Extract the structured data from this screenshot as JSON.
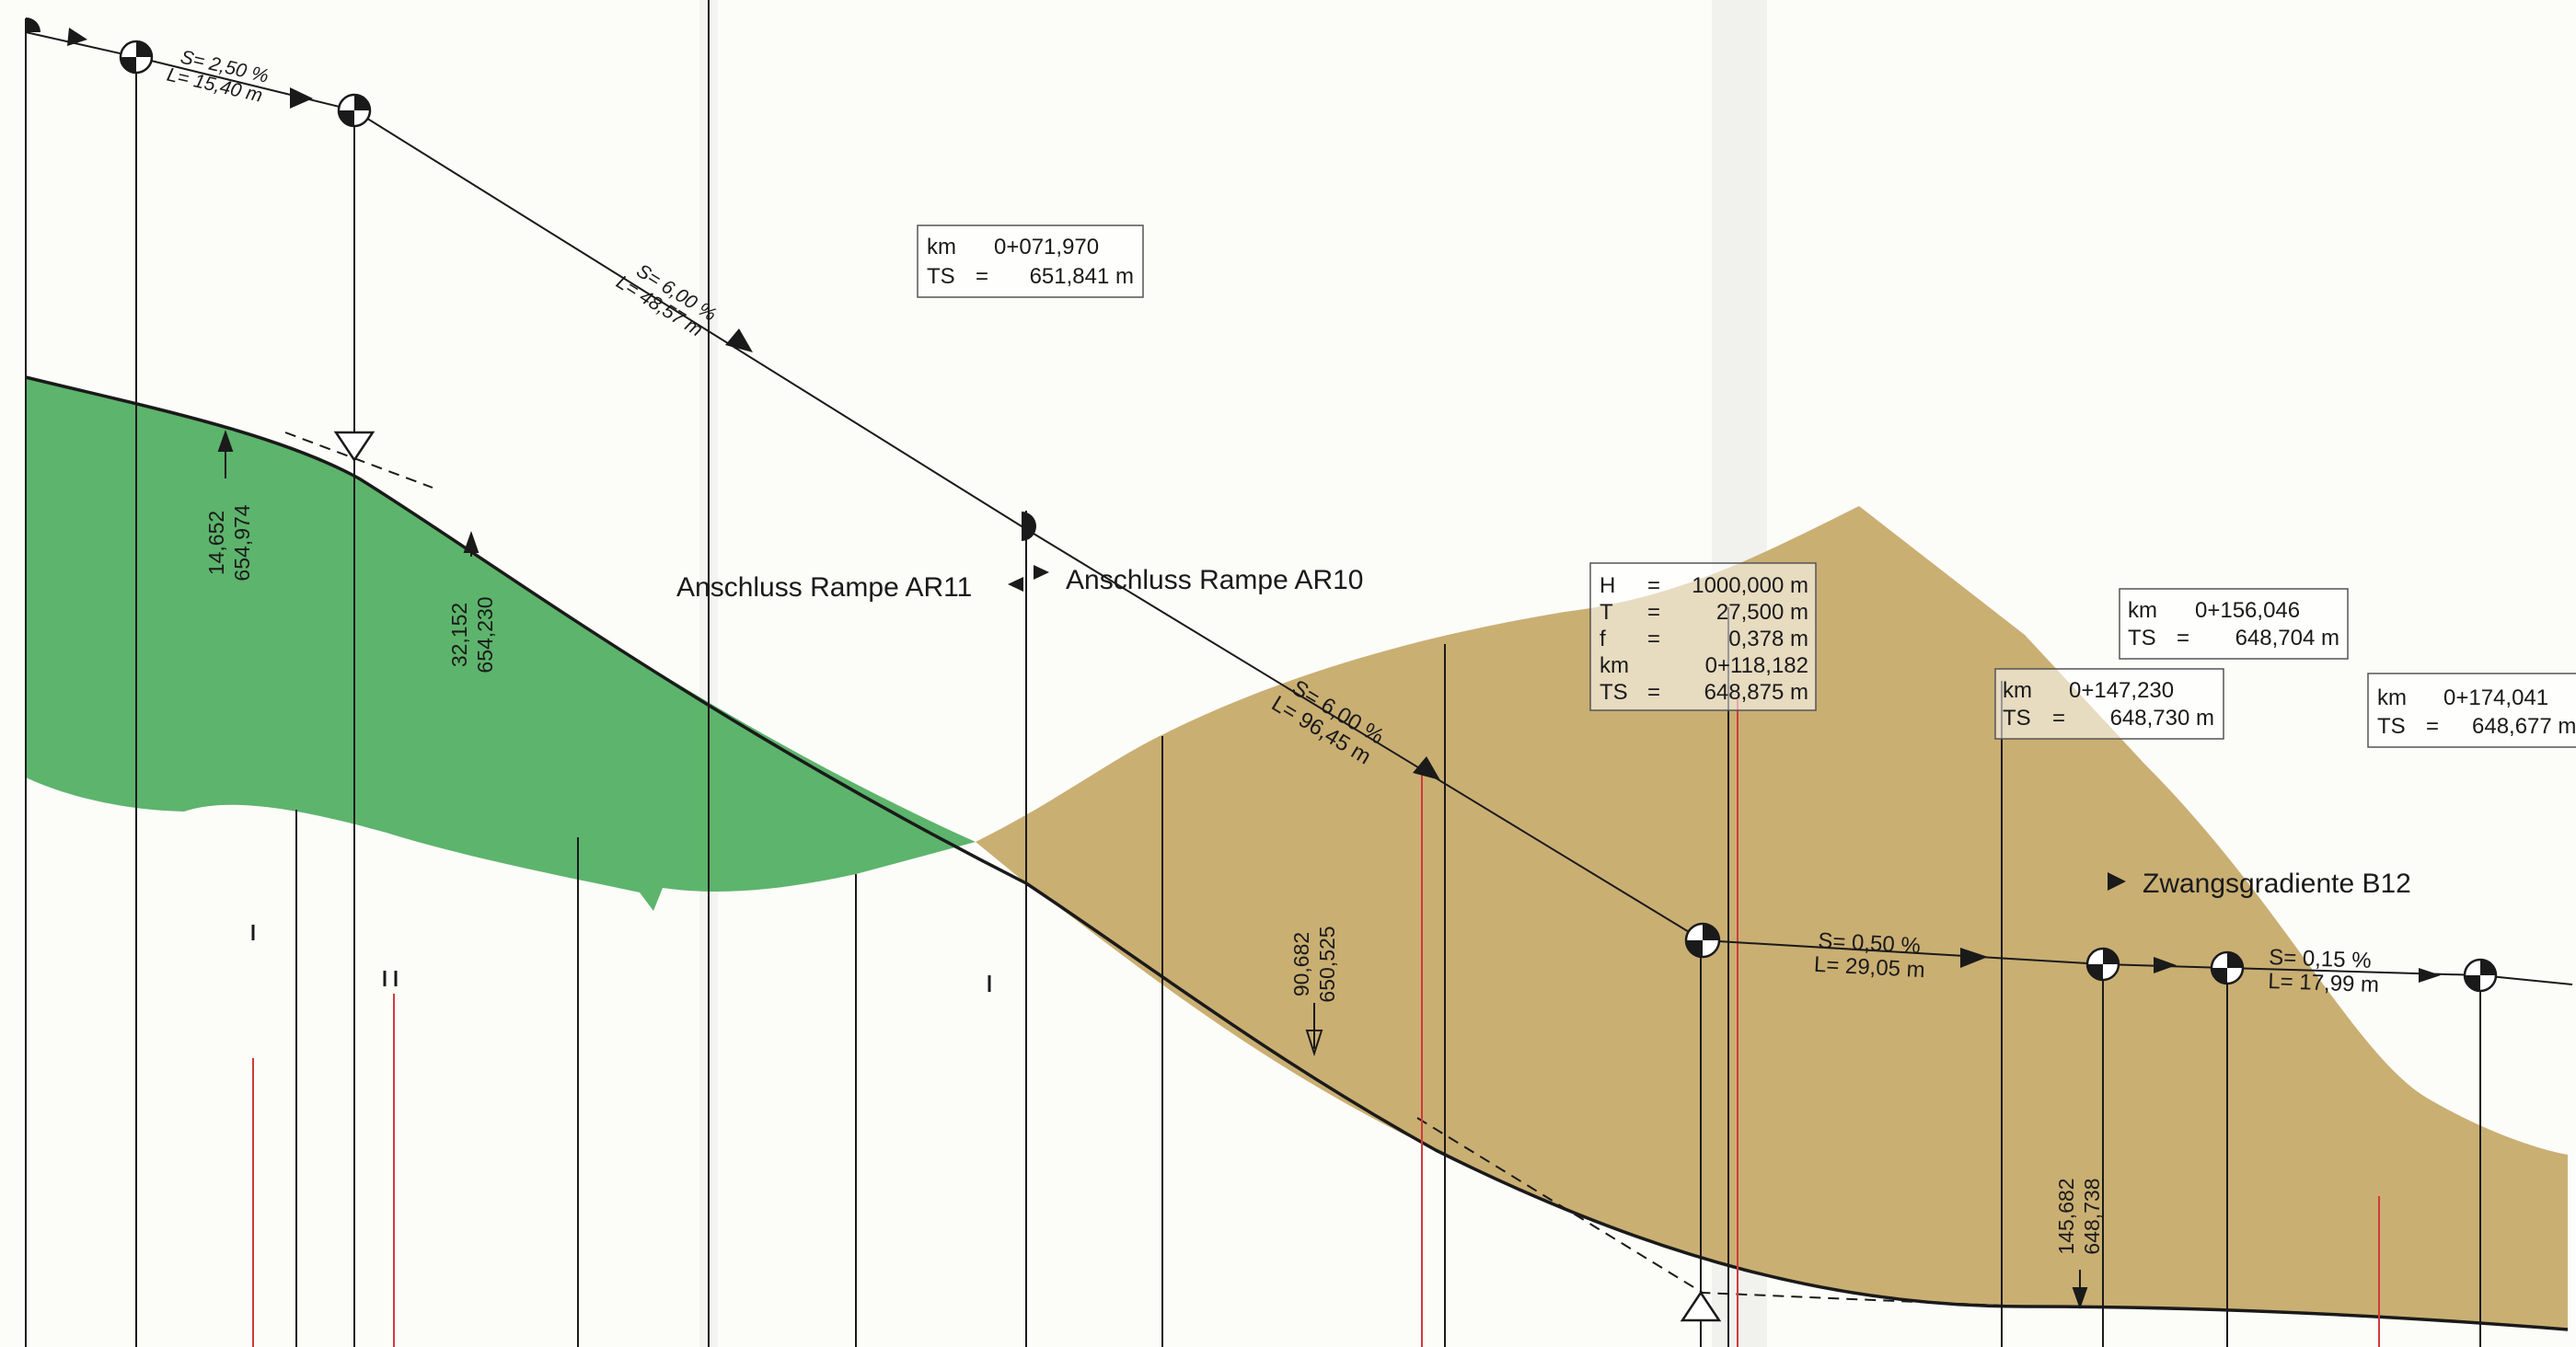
{
  "colors": {
    "cut_fill": "#4fae5f",
    "fill_fill": "#c7ab6c",
    "line": "#1a1a1a",
    "red_line": "#d23a3a"
  },
  "slopes": [
    {
      "s": "S= 2,50 %",
      "l": "L= 15,40 m"
    },
    {
      "s": "S= 6,00 %",
      "l": "L= 48,57 m"
    },
    {
      "s": "S= 6,00 %",
      "l": "L= 96,45 m"
    },
    {
      "s": "S= 0,50 %",
      "l": "L= 29,05 m"
    },
    {
      "s": "S= 0,15 %",
      "l": "L= 17,99 m"
    }
  ],
  "ramps": {
    "ar11": "Anschluss Rampe AR11",
    "ar10": "Anschluss Rampe AR10",
    "b12": "Zwangsgradiente B12"
  },
  "vertical_labels": [
    {
      "a": "14,652",
      "b": "654,974"
    },
    {
      "a": "32,152",
      "b": "654,230"
    },
    {
      "a": "90,682",
      "b": "650,525"
    },
    {
      "a": "145,682",
      "b": "648,738"
    }
  ],
  "boxes": {
    "b1": {
      "km_key": "km",
      "km": "0+071,970",
      "ts_key": "TS",
      "ts": "651,841 m"
    },
    "curve": {
      "rows": [
        {
          "k": "H",
          "eq": "=",
          "v": "1000,000 m"
        },
        {
          "k": "T",
          "eq": "=",
          "v": "27,500 m"
        },
        {
          "k": "f",
          "eq": "=",
          "v": "0,378 m"
        },
        {
          "k": "km",
          "eq": "",
          "v": "0+118,182"
        },
        {
          "k": "TS",
          "eq": "=",
          "v": "648,875 m"
        }
      ]
    },
    "b3": {
      "km_key": "km",
      "km": "0+147,230",
      "ts_key": "TS",
      "ts": "648,730 m"
    },
    "b4": {
      "km_key": "km",
      "km": "0+156,046",
      "ts_key": "TS",
      "ts": "648,704 m"
    },
    "b5": {
      "km_key": "km",
      "km": "0+174,041",
      "ts_key": "TS",
      "ts": "648,677 m"
    }
  }
}
